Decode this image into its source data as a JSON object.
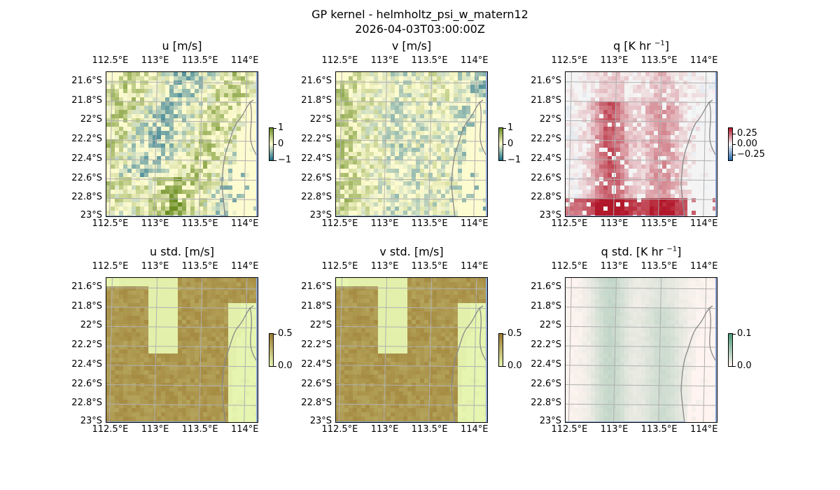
{
  "figure": {
    "title_line1": "GP kernel - helmholtz_psi_w_matern12",
    "title_line2": "2026-04-03T03:00:00Z"
  },
  "axes": {
    "lon_ticks": [
      "112.5°E",
      "113°E",
      "113.5°E",
      "114°E"
    ],
    "lat_ticks": [
      "21.6°S",
      "21.8°S",
      "22°S",
      "22.2°S",
      "22.4°S",
      "22.6°S",
      "22.8°S",
      "23°S"
    ]
  },
  "panels": [
    {
      "id": "u",
      "title": "u [m/s]",
      "title_base": "u",
      "title_sup": "",
      "title_end": " [m/s]",
      "colorbar_ticks": [
        "1",
        "0",
        "−1"
      ],
      "colorbar_colors": [
        "#6b8e23",
        "#fdfbd0",
        "#1a6e8a"
      ]
    },
    {
      "id": "v",
      "title": "v [m/s]",
      "title_base": "v",
      "title_sup": "",
      "title_end": " [m/s]",
      "colorbar_ticks": [
        "1",
        "0",
        "−1"
      ],
      "colorbar_colors": [
        "#6b8e23",
        "#fdfbd0",
        "#1a6e8a"
      ]
    },
    {
      "id": "q",
      "title": "q [K hr −1]",
      "title_base": "q [K hr ",
      "title_sup": "−1",
      "title_end": "]",
      "colorbar_ticks": [
        "0.25",
        "0.00",
        "−0.25"
      ],
      "colorbar_colors": [
        "#b2182b",
        "#f7f7f7",
        "#2166ac"
      ]
    },
    {
      "id": "u_std",
      "title": "u std. [m/s]",
      "title_base": "u std.",
      "title_sup": "",
      "title_end": " [m/s]",
      "colorbar_ticks": [
        "0.5",
        "0.0"
      ],
      "colorbar_colors": [
        "#9b7a30",
        "#e6f5b0"
      ]
    },
    {
      "id": "v_std",
      "title": "v std. [m/s]",
      "title_base": "v std.",
      "title_sup": "",
      "title_end": " [m/s]",
      "colorbar_ticks": [
        "0.5",
        "0.0"
      ],
      "colorbar_colors": [
        "#9b7a30",
        "#e6f5b0"
      ]
    },
    {
      "id": "q_std",
      "title": "q std. [K hr −1]",
      "title_base": "q std. [K hr ",
      "title_sup": "−1",
      "title_end": "]",
      "colorbar_ticks": [
        "0.1",
        "0.0"
      ],
      "colorbar_colors": [
        "#4a9a78",
        "#fff5f0"
      ]
    }
  ],
  "chart_data": {
    "type": "heatmap",
    "lon_range": [
      112.45,
      114.15
    ],
    "lat_range": [
      -23.0,
      -21.5
    ],
    "grid": true,
    "coast_color": "#888888",
    "ocean_edge_color": "#8fa8d8",
    "fields": {
      "u": {
        "range": [
          -1,
          1
        ]
      },
      "v": {
        "range": [
          -1,
          1
        ]
      },
      "q": {
        "range": [
          -0.35,
          0.35
        ]
      },
      "u_std": {
        "range": [
          0,
          0.5
        ]
      },
      "v_std": {
        "range": [
          0,
          0.5
        ]
      },
      "q_std": {
        "range": [
          0,
          0.1
        ]
      }
    }
  }
}
